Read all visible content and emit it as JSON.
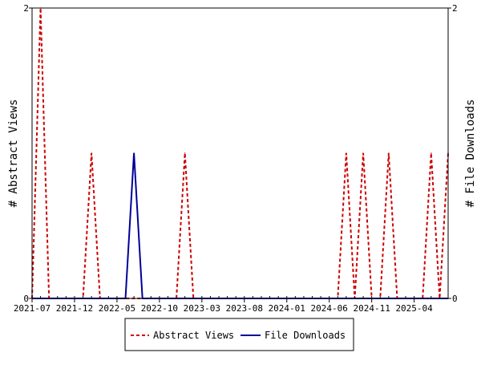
{
  "chart_data": {
    "type": "line",
    "x_ticks": [
      "2021-07",
      "2021-12",
      "2022-05",
      "2022-10",
      "2023-03",
      "2023-08",
      "2024-01",
      "2024-06",
      "2024-11",
      "2025-04"
    ],
    "x_range": [
      "2021-07",
      "2025-08"
    ],
    "y_left": {
      "label": "# Abstract Views",
      "ylim": [
        0,
        2
      ],
      "ticks": [
        "0",
        "2"
      ]
    },
    "y_right": {
      "label": "# File Downloads",
      "ylim": [
        0,
        2
      ],
      "ticks": [
        "0",
        "2"
      ]
    },
    "grid": false,
    "legend_position": "bottom",
    "series": [
      {
        "name": "Abstract Views",
        "axis": "left",
        "color": "#cc0000",
        "style": "dashed",
        "x": [
          "2021-07",
          "2021-08",
          "2021-09",
          "2021-10",
          "2021-11",
          "2021-12",
          "2022-01",
          "2022-02",
          "2022-03",
          "2022-04",
          "2022-05",
          "2022-06",
          "2022-07",
          "2022-08",
          "2022-09",
          "2022-10",
          "2022-11",
          "2022-12",
          "2023-01",
          "2023-02",
          "2023-03",
          "2023-04",
          "2023-05",
          "2023-06",
          "2023-07",
          "2023-08",
          "2023-09",
          "2023-10",
          "2023-11",
          "2023-12",
          "2024-01",
          "2024-02",
          "2024-03",
          "2024-04",
          "2024-05",
          "2024-06",
          "2024-07",
          "2024-08",
          "2024-09",
          "2024-10",
          "2024-11",
          "2024-12",
          "2025-01",
          "2025-02",
          "2025-03",
          "2025-04",
          "2025-05",
          "2025-06",
          "2025-07",
          "2025-08"
        ],
        "values": [
          0,
          2,
          0,
          0,
          0,
          0,
          0,
          1,
          0,
          0,
          0,
          0,
          0,
          0,
          0,
          0,
          0,
          0,
          1,
          0,
          0,
          0,
          0,
          0,
          0,
          0,
          0,
          0,
          0,
          0,
          0,
          0,
          0,
          0,
          0,
          0,
          0,
          1,
          0,
          1,
          0,
          0,
          1,
          0,
          0,
          0,
          0,
          1,
          0,
          1
        ]
      },
      {
        "name": "File Downloads",
        "axis": "right",
        "color": "#000099",
        "style": "solid",
        "x": [
          "2021-07",
          "2021-08",
          "2021-09",
          "2021-10",
          "2021-11",
          "2021-12",
          "2022-01",
          "2022-02",
          "2022-03",
          "2022-04",
          "2022-05",
          "2022-06",
          "2022-07",
          "2022-08",
          "2022-09",
          "2022-10",
          "2022-11",
          "2022-12",
          "2023-01",
          "2023-02",
          "2023-03",
          "2023-04",
          "2023-05",
          "2023-06",
          "2023-07",
          "2023-08",
          "2023-09",
          "2023-10",
          "2023-11",
          "2023-12",
          "2024-01",
          "2024-02",
          "2024-03",
          "2024-04",
          "2024-05",
          "2024-06",
          "2024-07",
          "2024-08",
          "2024-09",
          "2024-10",
          "2024-11",
          "2024-12",
          "2025-01",
          "2025-02",
          "2025-03",
          "2025-04",
          "2025-05",
          "2025-06",
          "2025-07",
          "2025-08"
        ],
        "values": [
          0,
          0,
          0,
          0,
          0,
          0,
          0,
          0,
          0,
          0,
          0,
          0,
          1,
          0,
          0,
          0,
          0,
          0,
          0,
          0,
          0,
          0,
          0,
          0,
          0,
          0,
          0,
          0,
          0,
          0,
          0,
          0,
          0,
          0,
          0,
          0,
          0,
          0,
          0,
          0,
          0,
          0,
          0,
          0,
          0,
          0,
          0,
          0,
          0,
          0
        ]
      }
    ]
  }
}
